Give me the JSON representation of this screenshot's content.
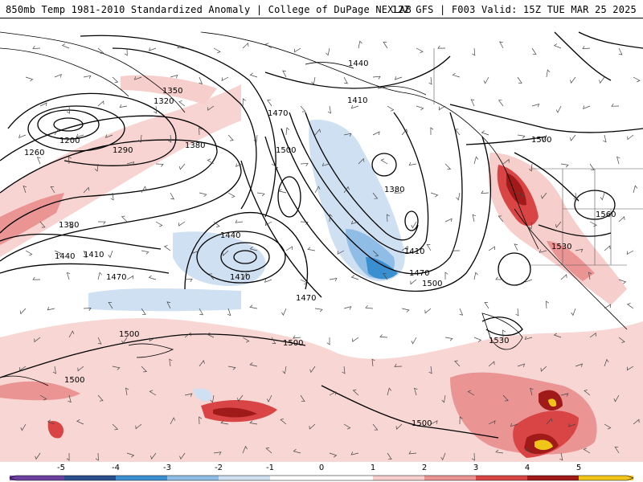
{
  "header": {
    "title": "850mb Temp 1981-2010 Standardized Anomaly | College of DuPage NEXLAB",
    "run_info": "12Z GFS | F003 Valid: 15Z TUE MAR 25 2025"
  },
  "contour_labels": [
    "1440",
    "1350",
    "1320",
    "1410",
    "1200",
    "1260",
    "1290",
    "1380",
    "1470",
    "1500",
    "1380",
    "1440",
    "1410",
    "1410",
    "1470",
    "1380",
    "1440",
    "1410",
    "1470",
    "1500",
    "1470",
    "1500",
    "1560",
    "1530",
    "1500",
    "1500",
    "1530",
    "1500",
    "1500"
  ],
  "legend": {
    "ticks": [
      "-5",
      "-4",
      "-3",
      "-2",
      "-1",
      "0",
      "1",
      "2",
      "3",
      "4",
      "5"
    ],
    "colors": {
      "neg5": "#6b3fa0",
      "neg4": "#2b4e8c",
      "neg3": "#3a8fd1",
      "neg2": "#8fbde6",
      "neg1": "#cfe0f2",
      "zero": "#ffffff",
      "pos1": "#f6cfcc",
      "pos2": "#ea9494",
      "pos3": "#d94545",
      "pos4": "#a01a1a",
      "pos5": "#f0c419"
    }
  }
}
